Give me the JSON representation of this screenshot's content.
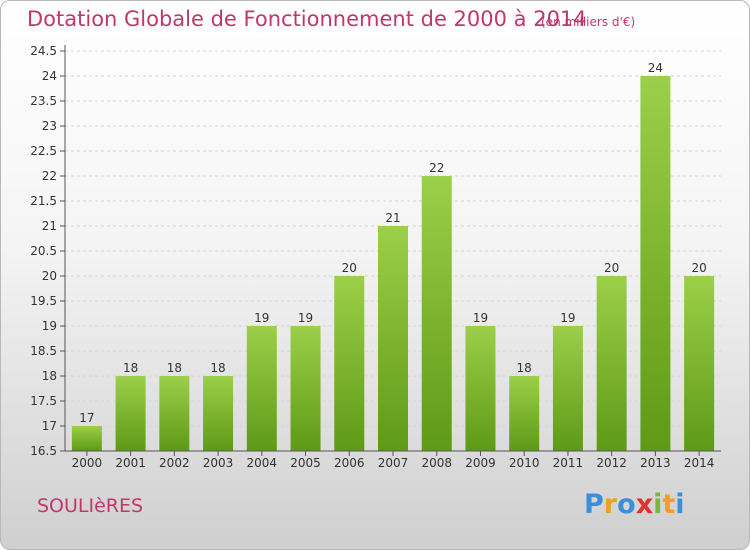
{
  "chart_data": {
    "type": "bar",
    "title": "Dotation Globale de Fonctionnement de 2000 à 2014",
    "subtitle": "(en milliers d'€)",
    "categories": [
      "2000",
      "2001",
      "2002",
      "2003",
      "2004",
      "2005",
      "2006",
      "2007",
      "2008",
      "2009",
      "2010",
      "2011",
      "2012",
      "2013",
      "2014"
    ],
    "values": [
      17,
      18,
      18,
      18,
      19,
      19,
      20,
      21,
      22,
      19,
      18,
      19,
      20,
      24,
      20
    ],
    "data_labels": [
      "17",
      "18",
      "18",
      "18",
      "19",
      "19",
      "20",
      "21",
      "22",
      "19",
      "18",
      "19",
      "20",
      "24",
      "20"
    ],
    "yticks": [
      16.5,
      17,
      17.5,
      18,
      18.5,
      19,
      19.5,
      20,
      20.5,
      21,
      21.5,
      22,
      22.5,
      23,
      23.5,
      24,
      24.5
    ],
    "ytick_labels": [
      "16.5",
      "17",
      "17.5",
      "18",
      "18.5",
      "19",
      "19.5",
      "20",
      "20.5",
      "21",
      "21.5",
      "22",
      "22.5",
      "23",
      "23.5",
      "24",
      "24.5"
    ],
    "ylim": [
      16.5,
      24.5
    ],
    "xlabel": "",
    "ylabel": "",
    "grid": true,
    "bar_color_top": "#9ccf4a",
    "bar_color_bottom": "#5e9a16"
  },
  "commune": "SOULIèRES",
  "logo": {
    "letters": [
      "P",
      "r",
      "o",
      "x",
      "i",
      "t",
      "i"
    ],
    "colors": [
      "#3a8fd8",
      "#f0a020",
      "#3a8fd8",
      "#e03030",
      "#7ab83a",
      "#f0a020",
      "#3a8fd8"
    ]
  }
}
